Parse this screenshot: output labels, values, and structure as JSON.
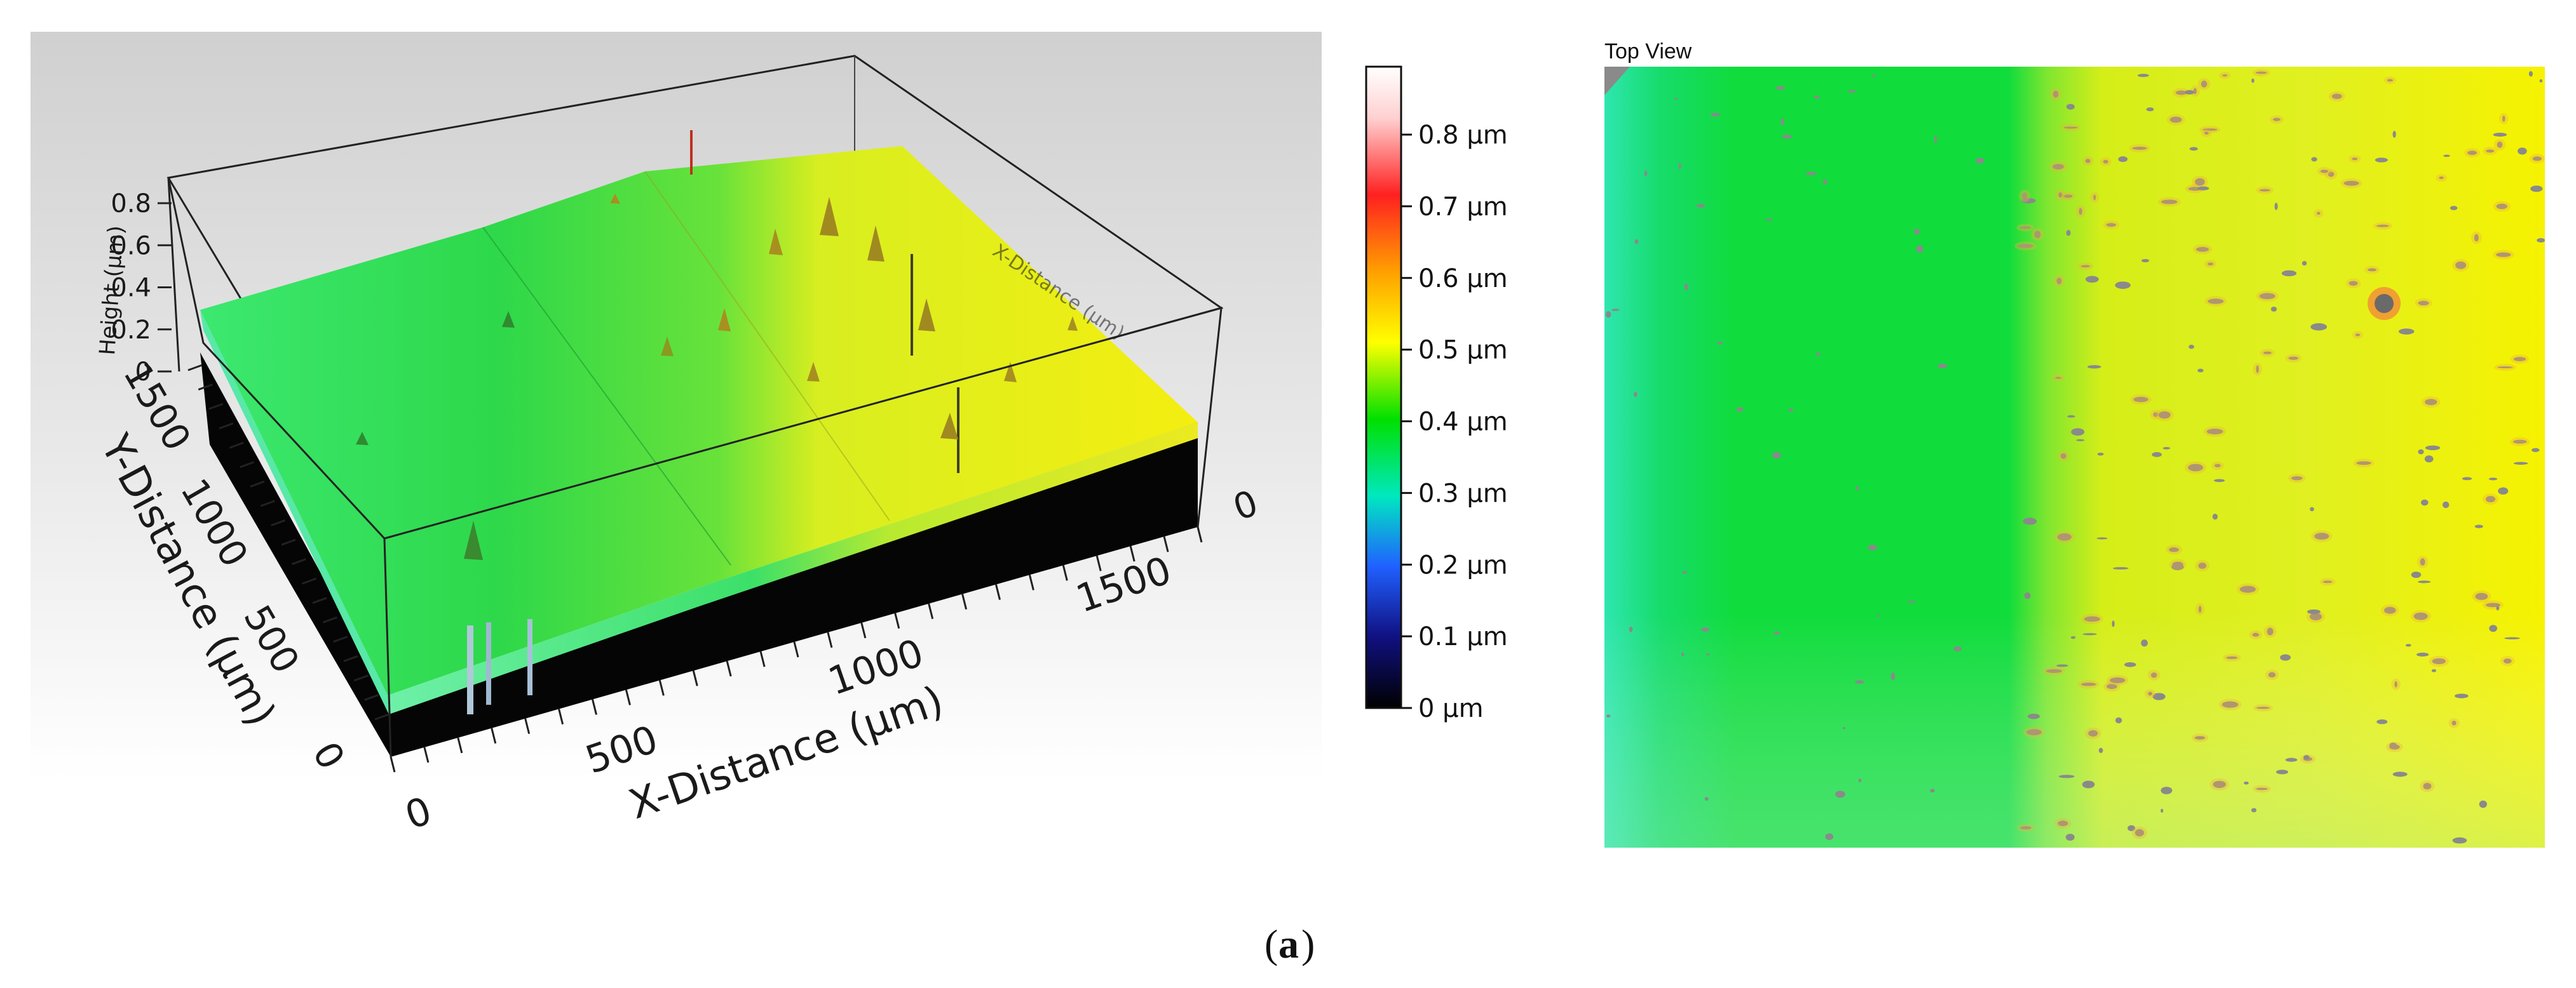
{
  "figure": {
    "caption_open": "(",
    "caption_letter": "a",
    "caption_close": ")"
  },
  "surface_plot": {
    "z_axis_label": "Height (µm)",
    "z_ticks": [
      "0.8",
      "0.6",
      "0.4",
      "0.2",
      "0"
    ],
    "y_axis_label": "Y-Distance (µm)",
    "y_ticks": [
      "1500",
      "1000",
      "500",
      "0"
    ],
    "x_axis_label": "X-Distance (µm)",
    "x_ticks": [
      "0",
      "500",
      "1000",
      "1500"
    ],
    "x_tick_back": "0",
    "back_axis_label": "X-Distance (µm)"
  },
  "colorbar": {
    "labels": [
      "0.8 µm",
      "0.7 µm",
      "0.6 µm",
      "0.5 µm",
      "0.4 µm",
      "0.3 µm",
      "0.2 µm",
      "0.1 µm",
      "0 µm"
    ],
    "colors": [
      "#ffffff",
      "#ff2020",
      "#ffa000",
      "#ffff00",
      "#00e000",
      "#00e8c0",
      "#2060ff",
      "#101080",
      "#000000"
    ]
  },
  "top_view": {
    "title": "Top View",
    "left_color": "#10dc3c",
    "right_color": "#f2f200",
    "edge_color": "#2ee6b0",
    "defect_color": "#8a8a8a"
  },
  "chart_data": [
    {
      "type": "surface3d",
      "title": "",
      "zlabel": "Height (µm)",
      "ylabel": "Y-Distance (µm)",
      "xlabel": "X-Distance (µm)",
      "zlim": [
        0,
        0.9
      ],
      "z_ticks": [
        0,
        0.2,
        0.4,
        0.6,
        0.8
      ],
      "x_ticks": [
        0,
        500,
        1000,
        1500
      ],
      "y_ticks": [
        0,
        500,
        1000,
        1500
      ],
      "regions": [
        {
          "name": "left region",
          "approx_height_um": 0.35
        },
        {
          "name": "right region",
          "approx_height_um": 0.5
        }
      ]
    },
    {
      "type": "colorbar",
      "unit": "µm",
      "range": [
        0,
        0.88
      ],
      "ticks": [
        0,
        0.1,
        0.2,
        0.3,
        0.4,
        0.5,
        0.6,
        0.7,
        0.8
      ]
    },
    {
      "type": "heatmap",
      "title": "Top View"
    }
  ]
}
